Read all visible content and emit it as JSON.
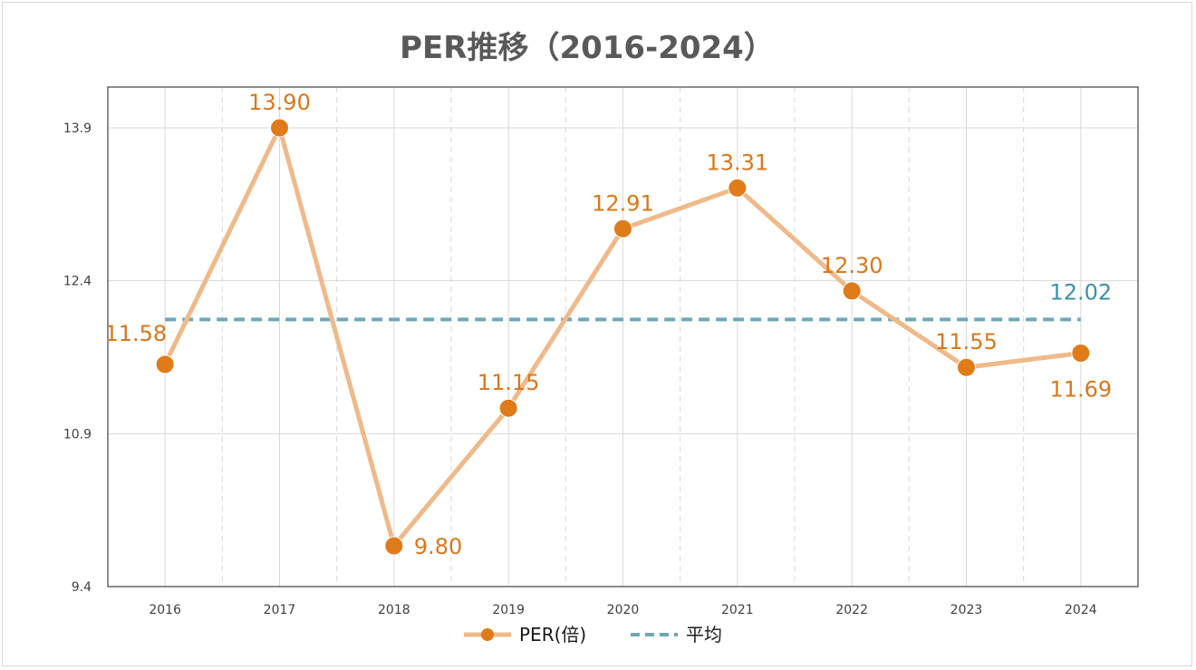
{
  "chart_data": {
    "type": "line",
    "title": "PER推移（2016-2024）",
    "categories": [
      "2016",
      "2017",
      "2018",
      "2019",
      "2020",
      "2021",
      "2022",
      "2023",
      "2024"
    ],
    "series": [
      {
        "name": "PER(倍)",
        "values": [
          11.58,
          13.9,
          9.8,
          11.15,
          12.91,
          13.31,
          12.3,
          11.55,
          11.69
        ],
        "labels": [
          "11.58",
          "13.90",
          "9.80",
          "11.15",
          "12.91",
          "13.31",
          "12.30",
          "11.55",
          "11.69"
        ],
        "label_positions": [
          "left",
          "above",
          "right",
          "above",
          "above",
          "above",
          "above",
          "above",
          "below"
        ],
        "line_color": "#f0b98a",
        "marker_color": "#e07b1a",
        "label_color": "#d9771a"
      },
      {
        "name": "平均",
        "value": 12.02,
        "label": "12.02",
        "line_style": "dashed",
        "line_color": "#6ea8b8",
        "label_color": "#3d8fa8"
      }
    ],
    "y_ticks": [
      "13.9",
      "12.4",
      "10.9",
      "9.4"
    ],
    "y_tick_values": [
      13.9,
      12.4,
      10.9,
      9.4
    ],
    "ylim": [
      9.4,
      14.3
    ],
    "grid": true,
    "legend_position": "bottom"
  }
}
